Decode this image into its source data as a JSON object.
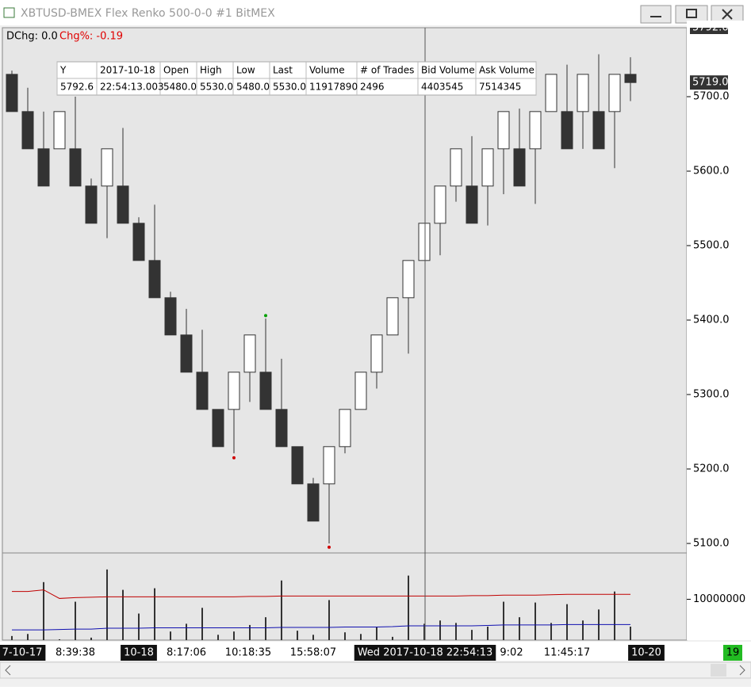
{
  "window_title": "XBTUSD-BMEX  Flex Renko 500-0-0  #1  BitMEX",
  "dchg": "DChg: 0.0",
  "chg_pct": "Chg%: -0.19",
  "data_window": {
    "headers": [
      "Y",
      "2017-10-18",
      "Open",
      "High",
      "Low",
      "Last",
      "Volume",
      "# of Trades",
      "Bid Volume",
      "Ask Volume"
    ],
    "row": [
      "5792.6",
      "22:54:13.003",
      "5480.0",
      "5530.0",
      "5480.0",
      "5530.0",
      "11917890",
      "2496",
      "4403545",
      "7514345"
    ]
  },
  "chart_data": {
    "type": "candlestick",
    "up_color": "#ffffff",
    "down_color": "#333333",
    "open": [
      5730,
      5680,
      5630,
      5630,
      5630,
      5580,
      5580,
      5580,
      5530,
      5480,
      5430,
      5380,
      5330,
      5280,
      5280,
      5330,
      5330,
      5280,
      5230,
      5180,
      5180,
      5230,
      5280,
      5330,
      5380,
      5430,
      5480,
      5530,
      5580,
      5580,
      5580,
      5630,
      5630,
      5630,
      5680,
      5680,
      5680,
      5680,
      5680,
      5730
    ],
    "high": [
      5735,
      5712,
      5680,
      5680,
      5700,
      5590,
      5630,
      5658,
      5538,
      5555,
      5438,
      5415,
      5387,
      5280,
      5330,
      5380,
      5402,
      5348,
      5230,
      5188,
      5230,
      5280,
      5330,
      5380,
      5430,
      5480,
      5530,
      5580,
      5630,
      5647,
      5630,
      5680,
      5684,
      5680,
      5730,
      5743,
      5730,
      5757,
      5730,
      5753
    ],
    "low": [
      5680,
      5630,
      5580,
      5630,
      5580,
      5530,
      5510,
      5530,
      5480,
      5430,
      5380,
      5330,
      5280,
      5230,
      5221,
      5290,
      5280,
      5230,
      5180,
      5130,
      5100,
      5221,
      5280,
      5308,
      5380,
      5355,
      5480,
      5487,
      5559,
      5530,
      5527,
      5569,
      5580,
      5556,
      5680,
      5630,
      5630,
      5630,
      5604,
      5694
    ],
    "close": [
      5680,
      5630,
      5580,
      5680,
      5580,
      5530,
      5630,
      5530,
      5480,
      5430,
      5380,
      5330,
      5280,
      5230,
      5330,
      5380,
      5280,
      5230,
      5180,
      5130,
      5230,
      5280,
      5330,
      5380,
      5430,
      5480,
      5530,
      5580,
      5630,
      5530,
      5630,
      5680,
      5580,
      5680,
      5730,
      5630,
      5730,
      5630,
      5730,
      5719
    ],
    "ylim": [
      5088.3,
      5792.6
    ],
    "yticks": [
      {
        "value": 5100,
        "label": "5100.0"
      },
      {
        "value": 5200,
        "label": "5200.0"
      },
      {
        "value": 5300,
        "label": "5300.0"
      },
      {
        "value": 5400,
        "label": "5400.0"
      },
      {
        "value": 5500,
        "label": "5500.0"
      },
      {
        "value": 5600,
        "label": "5600.0"
      },
      {
        "value": 5700,
        "label": "5700.0"
      }
    ],
    "last_price": {
      "value": 5719,
      "label": "5719.0"
    },
    "crosshair_price": {
      "value": 5792.6,
      "label": "5792.6"
    },
    "markers": [
      {
        "index": 16,
        "value": 5406,
        "color": "#00a000"
      },
      {
        "index": 14,
        "value": 5215,
        "color": "#d00000"
      },
      {
        "index": 20,
        "value": 5095,
        "color": "#d00000"
      }
    ],
    "x_labels": [
      "7-10-17",
      "8:39:38",
      "10-18",
      "8:17:06",
      "10:18:35",
      "15:58:07",
      "Wed 2017-10-18  22:54:13",
      "9:02",
      "11:45:17",
      "10-20"
    ],
    "bar_count": "19",
    "volume": {
      "color": "#333333",
      "values": [
        1000000,
        1500000,
        14200000,
        200000,
        9400000,
        600000,
        17300000,
        12300000,
        6500000,
        12700000,
        2100000,
        4000000,
        7900000,
        1300000,
        2100000,
        3700000,
        5600000,
        14600000,
        2300000,
        1300000,
        9800000,
        1900000,
        1500000,
        3300000,
        800000,
        15800000,
        4000000,
        4800000,
        4200000,
        2500000,
        3300000,
        9400000,
        5600000,
        9200000,
        4200000,
        8800000,
        4800000,
        7500000,
        11900000,
        3300000
      ],
      "ylim": [
        0,
        21150000
      ],
      "yticks": [
        10000000
      ],
      "lines": [
        {
          "color": "#c00000",
          "values": [
            11900000,
            11900000,
            12300000,
            10200000,
            10400000,
            10500000,
            10600000,
            10600000,
            10600000,
            10600000,
            10600000,
            10600000,
            10600000,
            10600000,
            10600000,
            10700000,
            10700000,
            10800000,
            10800000,
            10800000,
            10800000,
            10800000,
            10800000,
            10800000,
            10800000,
            10800000,
            10800000,
            10800000,
            10800000,
            10900000,
            10900000,
            11000000,
            11000000,
            11000000,
            11100000,
            11200000,
            11200000,
            11200000,
            11200000,
            11200000
          ]
        },
        {
          "color": "#1010b0",
          "values": [
            2500000,
            2500000,
            2500000,
            2600000,
            2700000,
            2700000,
            2900000,
            2900000,
            2900000,
            3000000,
            3000000,
            3000000,
            3000000,
            3000000,
            3000000,
            3000000,
            3000000,
            3100000,
            3100000,
            3100000,
            3100000,
            3200000,
            3200000,
            3200000,
            3300000,
            3500000,
            3500000,
            3500000,
            3500000,
            3500000,
            3600000,
            3700000,
            3700000,
            3700000,
            3700000,
            3800000,
            3800000,
            3800000,
            3800000,
            3800000
          ]
        }
      ]
    }
  }
}
